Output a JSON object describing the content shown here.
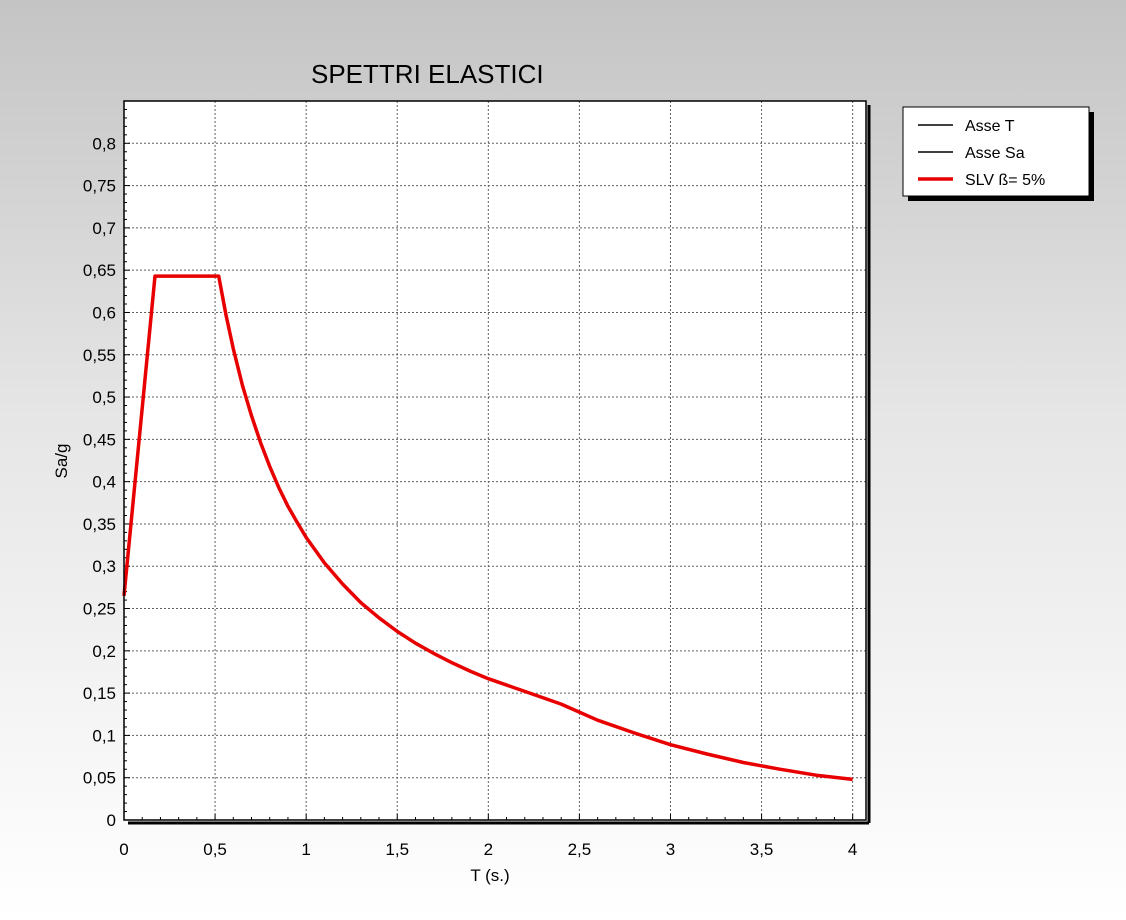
{
  "chart_data": {
    "type": "line",
    "title": "SPETTRI ELASTICI",
    "xlabel": "T (s.)",
    "ylabel": "Sa/g",
    "xlim": [
      0,
      4
    ],
    "ylim": [
      0,
      0.85
    ],
    "x_ticks": [
      "0",
      "0,5",
      "1",
      "1,5",
      "2",
      "2,5",
      "3",
      "3,5",
      "4"
    ],
    "y_ticks": [
      "0",
      "0,05",
      "0,1",
      "0,15",
      "0,2",
      "0,25",
      "0,3",
      "0,35",
      "0,4",
      "0,45",
      "0,5",
      "0,55",
      "0,6",
      "0,65",
      "0,7",
      "0,75",
      "0,8"
    ],
    "grid": true,
    "legend_position": "right-top",
    "legend": [
      "Asse T",
      "Asse Sa",
      "SLV ß= 5%"
    ],
    "series": [
      {
        "name": "Asse T",
        "color": "#000000",
        "x": [],
        "y": []
      },
      {
        "name": "Asse Sa",
        "color": "#000000",
        "x": [],
        "y": []
      },
      {
        "name": "SLV ß= 5%",
        "color": "#e80000",
        "x": [
          0,
          0.17,
          0.52,
          0.56,
          0.6,
          0.65,
          0.7,
          0.75,
          0.8,
          0.85,
          0.9,
          0.95,
          1.0,
          1.1,
          1.2,
          1.3,
          1.4,
          1.5,
          1.6,
          1.7,
          1.8,
          1.9,
          2.0,
          2.2,
          2.4,
          2.6,
          2.8,
          3.0,
          3.2,
          3.4,
          3.6,
          3.8,
          4.0
        ],
        "y": [
          0.265,
          0.643,
          0.643,
          0.597,
          0.557,
          0.514,
          0.478,
          0.446,
          0.418,
          0.393,
          0.371,
          0.352,
          0.334,
          0.304,
          0.279,
          0.257,
          0.239,
          0.223,
          0.209,
          0.197,
          0.186,
          0.176,
          0.167,
          0.152,
          0.137,
          0.118,
          0.103,
          0.089,
          0.078,
          0.068,
          0.06,
          0.053,
          0.048
        ]
      }
    ]
  }
}
